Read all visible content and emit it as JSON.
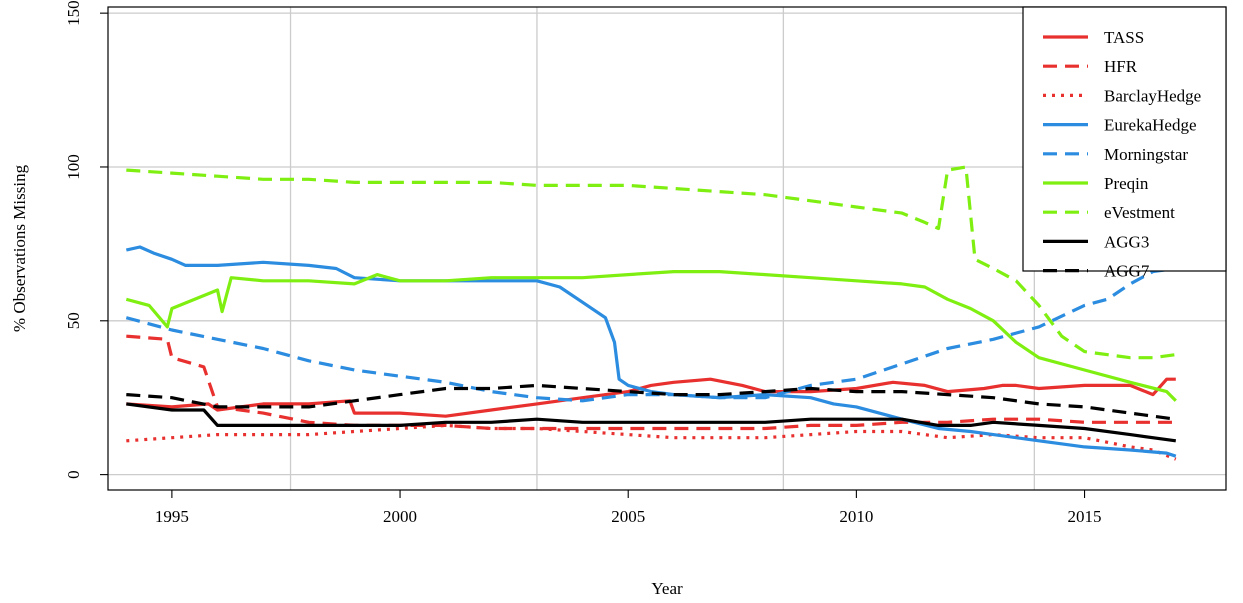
{
  "chart_data": {
    "type": "line",
    "title": "",
    "xlabel": "Year",
    "ylabel": "% Observations Missing",
    "xlim": [
      1993.6,
      2018.1
    ],
    "ylim": [
      -5,
      152
    ],
    "xticks": [
      1995,
      2000,
      2005,
      2010,
      2015
    ],
    "yticks": [
      0,
      50,
      100,
      150
    ],
    "grid": true,
    "legend_position": "top-right",
    "series": [
      {
        "name": "TASS",
        "color": "#e8302f",
        "dash": "solid",
        "points": [
          [
            1994.0,
            23
          ],
          [
            1995.0,
            22
          ],
          [
            1995.8,
            23
          ],
          [
            1996.0,
            21
          ],
          [
            1997.0,
            23
          ],
          [
            1998.0,
            23
          ],
          [
            1998.9,
            24
          ],
          [
            1999.0,
            20
          ],
          [
            2000.0,
            20
          ],
          [
            2001.0,
            19
          ],
          [
            2002.0,
            21
          ],
          [
            2003.0,
            23
          ],
          [
            2004.0,
            25
          ],
          [
            2005.0,
            27
          ],
          [
            2005.5,
            29
          ],
          [
            2006.0,
            30
          ],
          [
            2006.8,
            31
          ],
          [
            2007.5,
            29
          ],
          [
            2008.0,
            27
          ],
          [
            2009.0,
            27
          ],
          [
            2010.0,
            28
          ],
          [
            2010.8,
            30
          ],
          [
            2011.5,
            29
          ],
          [
            2012.0,
            27
          ],
          [
            2012.8,
            28
          ],
          [
            2013.2,
            29
          ],
          [
            2013.5,
            29
          ],
          [
            2014.0,
            28
          ],
          [
            2015.0,
            29
          ],
          [
            2016.0,
            29
          ],
          [
            2016.5,
            26
          ],
          [
            2016.8,
            31
          ],
          [
            2017.0,
            31
          ]
        ]
      },
      {
        "name": "HFR",
        "color": "#e8302f",
        "dash": "dashed",
        "points": [
          [
            1994.0,
            45
          ],
          [
            1994.9,
            44
          ],
          [
            1995.0,
            38
          ],
          [
            1995.7,
            35
          ],
          [
            1996.0,
            22
          ],
          [
            1997.0,
            20
          ],
          [
            1998.0,
            17
          ],
          [
            1999.0,
            16
          ],
          [
            2000.0,
            16
          ],
          [
            2001.0,
            16
          ],
          [
            2002.0,
            15
          ],
          [
            2003.0,
            15
          ],
          [
            2004.0,
            15
          ],
          [
            2005.0,
            15
          ],
          [
            2006.0,
            15
          ],
          [
            2007.0,
            15
          ],
          [
            2008.0,
            15
          ],
          [
            2009.0,
            16
          ],
          [
            2010.0,
            16
          ],
          [
            2011.0,
            17
          ],
          [
            2012.0,
            17
          ],
          [
            2013.0,
            18
          ],
          [
            2014.0,
            18
          ],
          [
            2015.0,
            17
          ],
          [
            2016.0,
            17
          ],
          [
            2017.0,
            17
          ]
        ]
      },
      {
        "name": "BarclayHedge",
        "color": "#e8302f",
        "dash": "dotted",
        "points": [
          [
            1994.0,
            11
          ],
          [
            1995.0,
            12
          ],
          [
            1996.0,
            13
          ],
          [
            1997.0,
            13
          ],
          [
            1998.0,
            13
          ],
          [
            1999.0,
            14
          ],
          [
            2000.0,
            15
          ],
          [
            2001.0,
            16
          ],
          [
            2002.0,
            15
          ],
          [
            2003.0,
            15
          ],
          [
            2004.0,
            14
          ],
          [
            2005.0,
            13
          ],
          [
            2006.0,
            12
          ],
          [
            2007.0,
            12
          ],
          [
            2008.0,
            12
          ],
          [
            2009.0,
            13
          ],
          [
            2010.0,
            14
          ],
          [
            2011.0,
            14
          ],
          [
            2012.0,
            12
          ],
          [
            2013.0,
            13
          ],
          [
            2014.0,
            12
          ],
          [
            2015.0,
            12
          ],
          [
            2016.0,
            9
          ],
          [
            2016.5,
            8
          ],
          [
            2017.0,
            5
          ]
        ]
      },
      {
        "name": "EurekaHedge",
        "color": "#2b8ce0",
        "dash": "solid",
        "points": [
          [
            1994.0,
            73
          ],
          [
            1994.3,
            74
          ],
          [
            1994.6,
            72
          ],
          [
            1995.0,
            70
          ],
          [
            1995.3,
            68
          ],
          [
            1996.0,
            68
          ],
          [
            1997.0,
            69
          ],
          [
            1998.0,
            68
          ],
          [
            1998.6,
            67
          ],
          [
            1999.0,
            64
          ],
          [
            2000.0,
            63
          ],
          [
            2001.0,
            63
          ],
          [
            2002.0,
            63
          ],
          [
            2003.0,
            63
          ],
          [
            2003.5,
            61
          ],
          [
            2004.0,
            56
          ],
          [
            2004.5,
            51
          ],
          [
            2004.7,
            43
          ],
          [
            2004.8,
            31
          ],
          [
            2005.0,
            29
          ],
          [
            2005.5,
            27
          ],
          [
            2006.0,
            26
          ],
          [
            2007.0,
            25
          ],
          [
            2008.0,
            26
          ],
          [
            2009.0,
            25
          ],
          [
            2009.5,
            23
          ],
          [
            2010.0,
            22
          ],
          [
            2011.0,
            18
          ],
          [
            2011.8,
            15
          ],
          [
            2012.5,
            14
          ],
          [
            2013.0,
            13
          ],
          [
            2014.0,
            11
          ],
          [
            2015.0,
            9
          ],
          [
            2016.0,
            8
          ],
          [
            2016.8,
            7
          ],
          [
            2017.0,
            6
          ]
        ]
      },
      {
        "name": "Morningstar",
        "color": "#2b8ce0",
        "dash": "dashed",
        "points": [
          [
            1994.0,
            51
          ],
          [
            1995.0,
            47
          ],
          [
            1996.0,
            44
          ],
          [
            1997.0,
            41
          ],
          [
            1998.0,
            37
          ],
          [
            1999.0,
            34
          ],
          [
            2000.0,
            32
          ],
          [
            2001.0,
            30
          ],
          [
            2002.0,
            27
          ],
          [
            2003.0,
            25
          ],
          [
            2004.0,
            24
          ],
          [
            2005.0,
            26
          ],
          [
            2006.0,
            26
          ],
          [
            2007.0,
            25
          ],
          [
            2008.0,
            25
          ],
          [
            2009.0,
            29
          ],
          [
            2010.0,
            31
          ],
          [
            2011.0,
            36
          ],
          [
            2012.0,
            41
          ],
          [
            2013.0,
            44
          ],
          [
            2014.0,
            48
          ],
          [
            2015.0,
            55
          ],
          [
            2015.5,
            57
          ],
          [
            2016.0,
            62
          ],
          [
            2016.5,
            66
          ],
          [
            2017.0,
            67
          ]
        ]
      },
      {
        "name": "Preqin",
        "color": "#7fef11",
        "dash": "solid",
        "points": [
          [
            1994.0,
            57
          ],
          [
            1994.5,
            55
          ],
          [
            1994.9,
            48
          ],
          [
            1995.0,
            54
          ],
          [
            1996.0,
            60
          ],
          [
            1996.1,
            53
          ],
          [
            1996.3,
            64
          ],
          [
            1997.0,
            63
          ],
          [
            1998.0,
            63
          ],
          [
            1999.0,
            62
          ],
          [
            1999.5,
            65
          ],
          [
            2000.0,
            63
          ],
          [
            2001.0,
            63
          ],
          [
            2002.0,
            64
          ],
          [
            2003.0,
            64
          ],
          [
            2004.0,
            64
          ],
          [
            2005.0,
            65
          ],
          [
            2006.0,
            66
          ],
          [
            2007.0,
            66
          ],
          [
            2008.0,
            65
          ],
          [
            2009.0,
            64
          ],
          [
            2010.0,
            63
          ],
          [
            2011.0,
            62
          ],
          [
            2011.5,
            61
          ],
          [
            2012.0,
            57
          ],
          [
            2012.5,
            54
          ],
          [
            2013.0,
            50
          ],
          [
            2013.5,
            43
          ],
          [
            2014.0,
            38
          ],
          [
            2015.0,
            34
          ],
          [
            2016.0,
            30
          ],
          [
            2016.8,
            27
          ],
          [
            2017.0,
            24
          ]
        ]
      },
      {
        "name": "eVestment",
        "color": "#7fef11",
        "dash": "dashed",
        "points": [
          [
            1994.0,
            99
          ],
          [
            1995.0,
            98
          ],
          [
            1996.0,
            97
          ],
          [
            1997.0,
            96
          ],
          [
            1998.0,
            96
          ],
          [
            1999.0,
            95
          ],
          [
            2000.0,
            95
          ],
          [
            2001.0,
            95
          ],
          [
            2002.0,
            95
          ],
          [
            2003.0,
            94
          ],
          [
            2004.0,
            94
          ],
          [
            2005.0,
            94
          ],
          [
            2006.0,
            93
          ],
          [
            2007.0,
            92
          ],
          [
            2008.0,
            91
          ],
          [
            2009.0,
            89
          ],
          [
            2010.0,
            87
          ],
          [
            2011.0,
            85
          ],
          [
            2011.5,
            82
          ],
          [
            2011.8,
            80
          ],
          [
            2012.0,
            99
          ],
          [
            2012.4,
            100
          ],
          [
            2012.6,
            70
          ],
          [
            2013.0,
            67
          ],
          [
            2013.5,
            63
          ],
          [
            2014.0,
            55
          ],
          [
            2014.5,
            45
          ],
          [
            2015.0,
            40
          ],
          [
            2016.0,
            38
          ],
          [
            2016.5,
            38
          ],
          [
            2017.0,
            39
          ]
        ]
      },
      {
        "name": "AGG3",
        "color": "#000000",
        "dash": "solid",
        "points": [
          [
            1994.0,
            23
          ],
          [
            1995.0,
            21
          ],
          [
            1995.7,
            21
          ],
          [
            1996.0,
            16
          ],
          [
            1997.0,
            16
          ],
          [
            1998.0,
            16
          ],
          [
            1999.0,
            16
          ],
          [
            2000.0,
            16
          ],
          [
            2001.0,
            17
          ],
          [
            2002.0,
            17
          ],
          [
            2003.0,
            18
          ],
          [
            2004.0,
            17
          ],
          [
            2005.0,
            17
          ],
          [
            2006.0,
            17
          ],
          [
            2007.0,
            17
          ],
          [
            2008.0,
            17
          ],
          [
            2009.0,
            18
          ],
          [
            2010.0,
            18
          ],
          [
            2011.0,
            18
          ],
          [
            2011.8,
            16
          ],
          [
            2012.5,
            16
          ],
          [
            2013.0,
            17
          ],
          [
            2014.0,
            16
          ],
          [
            2015.0,
            15
          ],
          [
            2016.0,
            13
          ],
          [
            2017.0,
            11
          ]
        ]
      },
      {
        "name": "AGG7",
        "color": "#000000",
        "dash": "dashed",
        "points": [
          [
            1994.0,
            26
          ],
          [
            1995.0,
            25
          ],
          [
            1996.0,
            22
          ],
          [
            1997.0,
            22
          ],
          [
            1998.0,
            22
          ],
          [
            1999.0,
            24
          ],
          [
            2000.0,
            26
          ],
          [
            2001.0,
            28
          ],
          [
            2002.0,
            28
          ],
          [
            2003.0,
            29
          ],
          [
            2004.0,
            28
          ],
          [
            2005.0,
            27
          ],
          [
            2006.0,
            26
          ],
          [
            2007.0,
            26
          ],
          [
            2008.0,
            27
          ],
          [
            2009.0,
            28
          ],
          [
            2010.0,
            27
          ],
          [
            2011.0,
            27
          ],
          [
            2012.0,
            26
          ],
          [
            2013.0,
            25
          ],
          [
            2014.0,
            23
          ],
          [
            2015.0,
            22
          ],
          [
            2016.0,
            20
          ],
          [
            2017.0,
            18
          ]
        ]
      }
    ]
  }
}
